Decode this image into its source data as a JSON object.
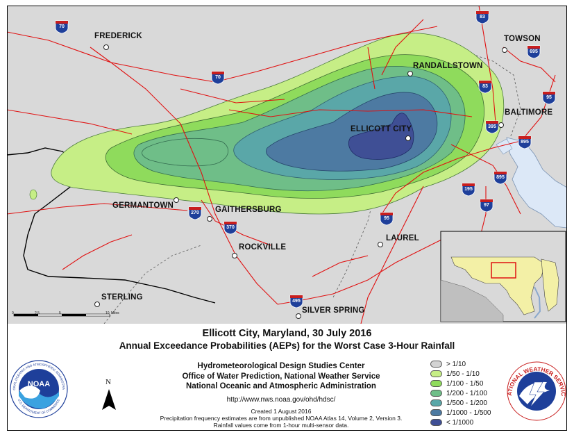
{
  "map": {
    "cities": [
      {
        "key": "frederick",
        "label": "FREDERICK"
      },
      {
        "key": "towson",
        "label": "TOWSON"
      },
      {
        "key": "randallstown",
        "label": "RANDALLSTOWN"
      },
      {
        "key": "baltimore",
        "label": "BALTIMORE"
      },
      {
        "key": "ellicott_city",
        "label": "ELLICOTT CITY"
      },
      {
        "key": "germantown",
        "label": "GERMANTOWN"
      },
      {
        "key": "gaithersburg",
        "label": "GAITHERSBURG"
      },
      {
        "key": "laurel",
        "label": "LAUREL"
      },
      {
        "key": "rockville",
        "label": "ROCKVILLE"
      },
      {
        "key": "sterling",
        "label": "STERLING"
      },
      {
        "key": "silver_spring",
        "label": "SILVER SPRING"
      }
    ],
    "shields": [
      "70",
      "83",
      "695",
      "70",
      "83",
      "95",
      "395",
      "895",
      "895",
      "195",
      "97",
      "95",
      "270",
      "370",
      "495"
    ],
    "scale_bar": {
      "ticks": [
        "0",
        "2.5",
        "5",
        "",
        "10"
      ],
      "unit": "Miles"
    }
  },
  "title_line1": "Ellicott City, Maryland, 30 July 2016",
  "title_line2": "Annual Exceedance Probabilities (AEPs) for the Worst Case 3-Hour Rainfall",
  "org_lines": [
    "Hydrometeorological Design Studies Center",
    "Office of Water Prediction, National Weather Service",
    "National Oceanic and Atmospheric Administration"
  ],
  "url": "http://www.nws.noaa.gov/ohd/hdsc/",
  "notes": [
    "Created 1 August 2016",
    "Precipitation frequency estimates are from unpublished NOAA Atlas 14, Volume 2, Version 3.",
    "Rainfall values come from 1-hour multi-sensor data."
  ],
  "north_label": "N",
  "legend": [
    {
      "label": "> 1/10",
      "color": "#d3d3d3"
    },
    {
      "label": "1/50 - 1/10",
      "color": "#c6ee86"
    },
    {
      "label": "1/100 - 1/50",
      "color": "#8fdb5c"
    },
    {
      "label": "1/200 - 1/100",
      "color": "#6fbe88"
    },
    {
      "label": "1/500 - 1/200",
      "color": "#5aa7a8"
    },
    {
      "label": "1/1000 - 1/500",
      "color": "#4d7aa2"
    },
    {
      "label": "< 1/1000",
      "color": "#3f4f95"
    }
  ],
  "noaa_logo": {
    "text": "NOAA",
    "ring_top": "NATIONAL OCEANIC AND ATMOSPHERIC ADMINISTRATION",
    "ring_bottom": "U.S. DEPARTMENT OF COMMERCE"
  },
  "nws_logo": {
    "ring": "NATIONAL WEATHER SERVICE"
  }
}
